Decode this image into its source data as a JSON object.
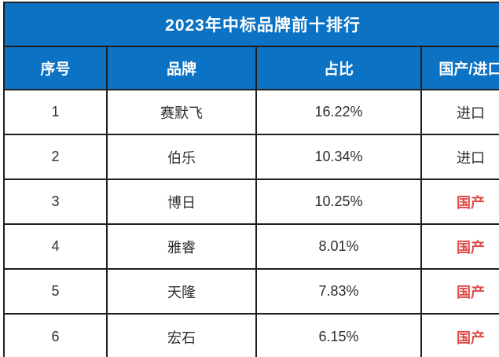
{
  "chart_data": {
    "type": "table",
    "title": "2023年中标品牌前十排行",
    "columns": [
      "序号",
      "品牌",
      "占比",
      "国产/进口"
    ],
    "rows": [
      {
        "rank": "1",
        "brand": "赛默飞",
        "share": "16.22%",
        "share_value": 16.22,
        "origin": "进口",
        "origin_class": "import"
      },
      {
        "rank": "2",
        "brand": "伯乐",
        "share": "10.34%",
        "share_value": 10.34,
        "origin": "进口",
        "origin_class": "import"
      },
      {
        "rank": "3",
        "brand": "博日",
        "share": "10.25%",
        "share_value": 10.25,
        "origin": "国产",
        "origin_class": "domestic"
      },
      {
        "rank": "4",
        "brand": "雅睿",
        "share": "8.01%",
        "share_value": 8.01,
        "origin": "国产",
        "origin_class": "domestic"
      },
      {
        "rank": "5",
        "brand": "天隆",
        "share": "7.83%",
        "share_value": 7.83,
        "origin": "国产",
        "origin_class": "domestic"
      },
      {
        "rank": "6",
        "brand": "宏石",
        "share": "6.15%",
        "share_value": 6.15,
        "origin": "国产",
        "origin_class": "domestic"
      }
    ],
    "layout": {
      "note_cropped": "table cropped at right and bottom edges"
    }
  },
  "colors": {
    "header_blue": "#0b72c4",
    "origin_domestic_red": "#e04b4b",
    "border": "#1f1f1f",
    "title_text": "#ffffff",
    "cell_text": "#2e2e2e"
  }
}
